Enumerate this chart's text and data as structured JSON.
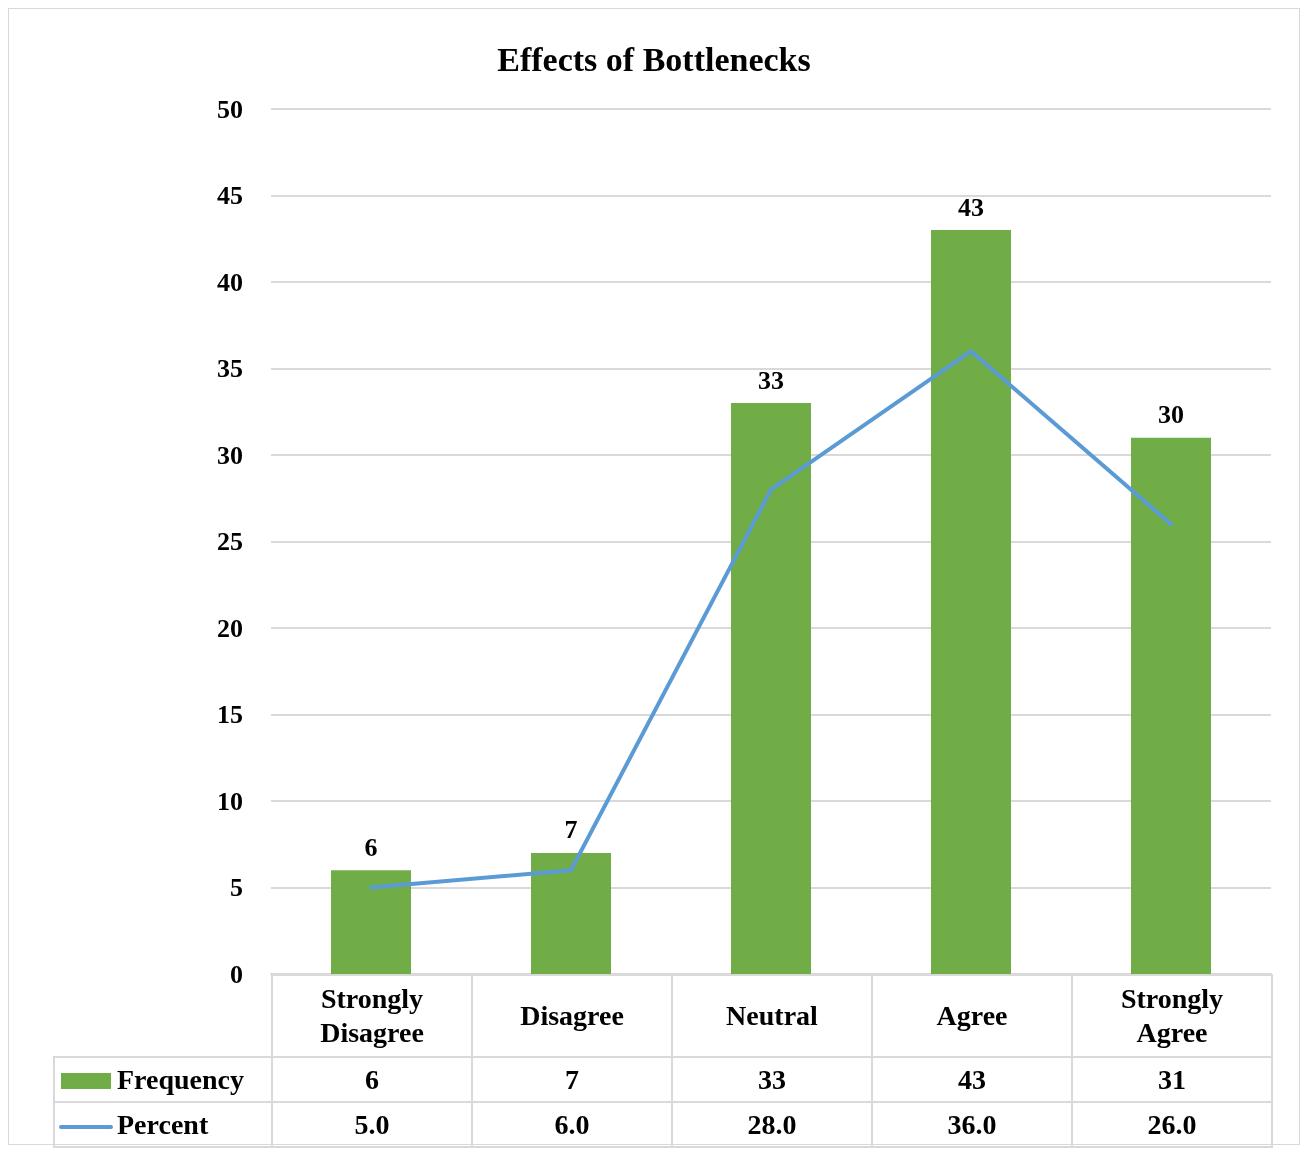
{
  "chart_data": {
    "type": "bar",
    "title": "Effects of Bottlenecks",
    "categories": [
      "Strongly Disagree",
      "Disagree",
      "Neutral",
      "Agree",
      "Strongly Agree"
    ],
    "series": [
      {
        "name": "Frequency",
        "color": "#70ad47",
        "values": [
          6,
          7,
          33,
          43,
          31
        ],
        "value_labels": [
          "6",
          "7",
          "33",
          "43",
          "31"
        ]
      },
      {
        "name": "Percent",
        "type": "line",
        "color": "#5b9bd5",
        "values": [
          5.0,
          6.0,
          28.0,
          36.0,
          26.0
        ],
        "value_labels": [
          "5.0",
          "6.0",
          "28.0",
          "36.0",
          "26.0"
        ]
      }
    ],
    "ylim": [
      0,
      50
    ],
    "yticks": [
      0,
      5,
      10,
      15,
      20,
      25,
      30,
      35,
      40,
      45,
      50
    ],
    "grid": "y",
    "legend": "bottom left",
    "annotations": [
      {
        "text": "30",
        "x": "Strongly Agree",
        "y": 31
      }
    ]
  }
}
